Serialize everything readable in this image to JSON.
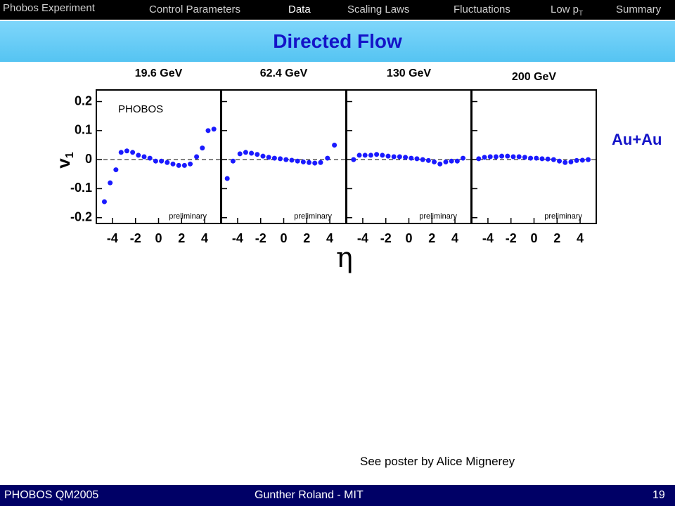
{
  "nav": {
    "left": "Phobos Experiment",
    "items": [
      {
        "text": "Control Parameters"
      },
      {
        "text": "Data"
      },
      {
        "text": "Low p",
        "sub": "T"
      },
      {
        "text": "Scaling Laws"
      },
      {
        "text": "Fluctuations"
      },
      {
        "text": "Summary"
      }
    ]
  },
  "header": {
    "title": "Directed Flow"
  },
  "figure": {
    "xlabel": "η",
    "ylabel": {
      "main": "v",
      "sub": "1"
    },
    "system": "Au+Au",
    "experiment": "PHOBOS"
  },
  "chart_data": [
    {
      "type": "scatter",
      "title": "19.6 GeV",
      "color": "#1a1aff",
      "annotation": "preliminary",
      "x": [
        -4.7,
        -4.2,
        -3.7,
        -3.25,
        -2.75,
        -2.25,
        -1.75,
        -1.25,
        -0.75,
        -0.25,
        0.25,
        0.75,
        1.25,
        1.75,
        2.25,
        2.75,
        3.3,
        3.8,
        4.3,
        4.8
      ],
      "values": [
        -0.145,
        -0.08,
        -0.035,
        0.025,
        0.03,
        0.025,
        0.015,
        0.01,
        0.005,
        -0.005,
        -0.005,
        -0.01,
        -0.015,
        -0.02,
        -0.02,
        -0.015,
        0.01,
        0.04,
        0.1,
        0.105
      ],
      "xlim": [
        -5.4,
        5.4
      ],
      "ylim": [
        -0.22,
        0.24
      ],
      "xticks": [
        -4,
        -2,
        0,
        2,
        4
      ],
      "yticks": [
        0.2,
        0.1,
        0,
        -0.1,
        -0.2
      ]
    },
    {
      "type": "scatter",
      "title": "62.4 GeV",
      "color": "#1a1aff",
      "annotation": "preliminary",
      "x": [
        -4.9,
        -4.4,
        -3.8,
        -3.3,
        -2.8,
        -2.3,
        -1.8,
        -1.3,
        -0.8,
        -0.3,
        0.2,
        0.7,
        1.2,
        1.7,
        2.2,
        2.7,
        3.2,
        3.8,
        4.4
      ],
      "values": [
        -0.065,
        -0.005,
        0.02,
        0.025,
        0.022,
        0.018,
        0.012,
        0.008,
        0.005,
        0.003,
        0.0,
        -0.002,
        -0.005,
        -0.008,
        -0.01,
        -0.012,
        -0.01,
        0.005,
        0.05
      ],
      "xlim": [
        -5.4,
        5.4
      ],
      "ylim": [
        -0.22,
        0.24
      ],
      "xticks": [
        -4,
        -2,
        0,
        2,
        4
      ]
    },
    {
      "type": "scatter",
      "title": "130 GeV",
      "color": "#1a1aff",
      "annotation": "preliminary",
      "x": [
        -4.8,
        -4.3,
        -3.8,
        -3.3,
        -2.8,
        -2.3,
        -1.8,
        -1.3,
        -0.8,
        -0.3,
        0.2,
        0.7,
        1.2,
        1.7,
        2.2,
        2.7,
        3.2,
        3.7,
        4.2,
        4.7
      ],
      "values": [
        0.0,
        0.015,
        0.015,
        0.015,
        0.018,
        0.015,
        0.012,
        0.01,
        0.01,
        0.008,
        0.005,
        0.003,
        0.0,
        -0.003,
        -0.008,
        -0.015,
        -0.008,
        -0.005,
        -0.005,
        0.005
      ],
      "xlim": [
        -5.4,
        5.4
      ],
      "ylim": [
        -0.22,
        0.24
      ],
      "xticks": [
        -4,
        -2,
        0,
        2,
        4
      ]
    },
    {
      "type": "scatter",
      "title": "200 GeV",
      "color": "#1a1aff",
      "annotation": "preliminary",
      "x": [
        -4.8,
        -4.3,
        -3.8,
        -3.3,
        -2.8,
        -2.3,
        -1.8,
        -1.3,
        -0.8,
        -0.3,
        0.2,
        0.7,
        1.2,
        1.7,
        2.2,
        2.7,
        3.2,
        3.7,
        4.2,
        4.7
      ],
      "values": [
        0.003,
        0.008,
        0.01,
        0.01,
        0.012,
        0.012,
        0.01,
        0.01,
        0.008,
        0.005,
        0.005,
        0.003,
        0.002,
        0.0,
        -0.005,
        -0.01,
        -0.008,
        -0.003,
        -0.002,
        0.0
      ],
      "xlim": [
        -5.4,
        5.4
      ],
      "ylim": [
        -0.22,
        0.24
      ],
      "xticks": [
        -4,
        -2,
        0,
        2,
        4
      ]
    }
  ],
  "note": "See poster by Alice Mignerey",
  "footer": {
    "left": "PHOBOS QM2005",
    "center": "Gunther Roland - MIT",
    "right": "19"
  }
}
